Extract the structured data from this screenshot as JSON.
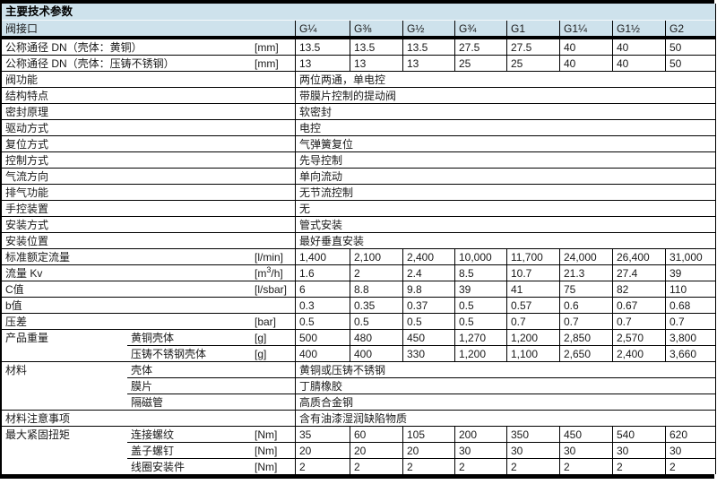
{
  "colors": {
    "band": "#cee2ec",
    "rule": "#000000",
    "text": "#1a1a1a"
  },
  "header": {
    "title": "主要技术参数"
  },
  "table": {
    "connector_row_label": "阀接口",
    "columns": [
      "G¼",
      "G⅜",
      "G½",
      "G¾",
      "G1",
      "G1¼",
      "G1½",
      "G2"
    ],
    "rows": [
      {
        "label": "公称通径 DN（壳体：黄铜）",
        "unit": "[mm]",
        "values": [
          "13.5",
          "13.5",
          "13.5",
          "27.5",
          "27.5",
          "40",
          "40",
          "50"
        ]
      },
      {
        "label": "公称通径 DN（壳体：压铸不锈钢）",
        "unit": "[mm]",
        "values": [
          "13",
          "13",
          "13",
          "25",
          "25",
          "40",
          "40",
          "50"
        ]
      },
      {
        "label": "阀功能",
        "span": "两位两通，单电控"
      },
      {
        "label": "结构特点",
        "span": "带膜片控制的提动阀"
      },
      {
        "label": "密封原理",
        "span": "软密封"
      },
      {
        "label": "驱动方式",
        "span": "电控"
      },
      {
        "label": "复位方式",
        "span": "气弹簧复位"
      },
      {
        "label": "控制方式",
        "span": "先导控制"
      },
      {
        "label": "气流方向",
        "span": "单向流动"
      },
      {
        "label": "排气功能",
        "span": "无节流控制"
      },
      {
        "label": "手控装置",
        "span": "无"
      },
      {
        "label": "安装方式",
        "span": "管式安装"
      },
      {
        "label": "安装位置",
        "span": "最好垂直安装"
      },
      {
        "label": "标准额定流量",
        "unit": "[l/min]",
        "values": [
          "1,400",
          "2,100",
          "2,400",
          "10,000",
          "11,700",
          "24,000",
          "26,400",
          "31,000"
        ]
      },
      {
        "label": "流量 Kv",
        "unit": "[m³/h]",
        "values": [
          "1.6",
          "2",
          "2.4",
          "8.5",
          "10.7",
          "21.3",
          "27.4",
          "39"
        ]
      },
      {
        "label": "C值",
        "unit": "[l/sbar]",
        "values": [
          "6",
          "8.8",
          "9.8",
          "39",
          "41",
          "75",
          "82",
          "110"
        ]
      },
      {
        "label": "b值",
        "unit": "",
        "values": [
          "0.3",
          "0.35",
          "0.37",
          "0.5",
          "0.57",
          "0.6",
          "0.67",
          "0.68"
        ]
      },
      {
        "label": "压差",
        "unit": "[bar]",
        "values": [
          "0.5",
          "0.5",
          "0.5",
          "0.5",
          "0.7",
          "0.7",
          "0.7",
          "0.7"
        ]
      },
      {
        "label": "产品重量",
        "sub": "黄铜壳体",
        "unit": "[g]",
        "values": [
          "500",
          "480",
          "450",
          "1,270",
          "1,200",
          "2,850",
          "2,570",
          "3,800"
        ]
      },
      {
        "label": "",
        "cont": true,
        "sub": "压铸不锈钢壳体",
        "unit": "[g]",
        "values": [
          "400",
          "400",
          "330",
          "1,200",
          "1,100",
          "2,650",
          "2,400",
          "3,660"
        ]
      },
      {
        "label": "材料",
        "sub": "壳体",
        "span": "黄铜或压铸不锈钢"
      },
      {
        "label": "",
        "cont": true,
        "sub": "膜片",
        "span": "丁腈橡胶"
      },
      {
        "label": "",
        "cont": true,
        "sub": "隔磁管",
        "span": "高质合金钢"
      },
      {
        "label": "材料注意事项",
        "span": "含有油漆湿润缺陷物质"
      },
      {
        "label": "最大紧固扭矩",
        "sub": "连接螺纹",
        "unit": "[Nm]",
        "values": [
          "35",
          "60",
          "105",
          "200",
          "350",
          "450",
          "540",
          "620"
        ]
      },
      {
        "label": "",
        "cont": true,
        "sub": "盖子螺钉",
        "unit": "[Nm]",
        "values": [
          "20",
          "20",
          "20",
          "30",
          "30",
          "30",
          "30",
          "30"
        ]
      },
      {
        "label": "",
        "cont": true,
        "sub": "线圈安装件",
        "unit": "[Nm]",
        "values": [
          "2",
          "2",
          "2",
          "2",
          "2",
          "2",
          "2",
          "2"
        ]
      }
    ]
  }
}
